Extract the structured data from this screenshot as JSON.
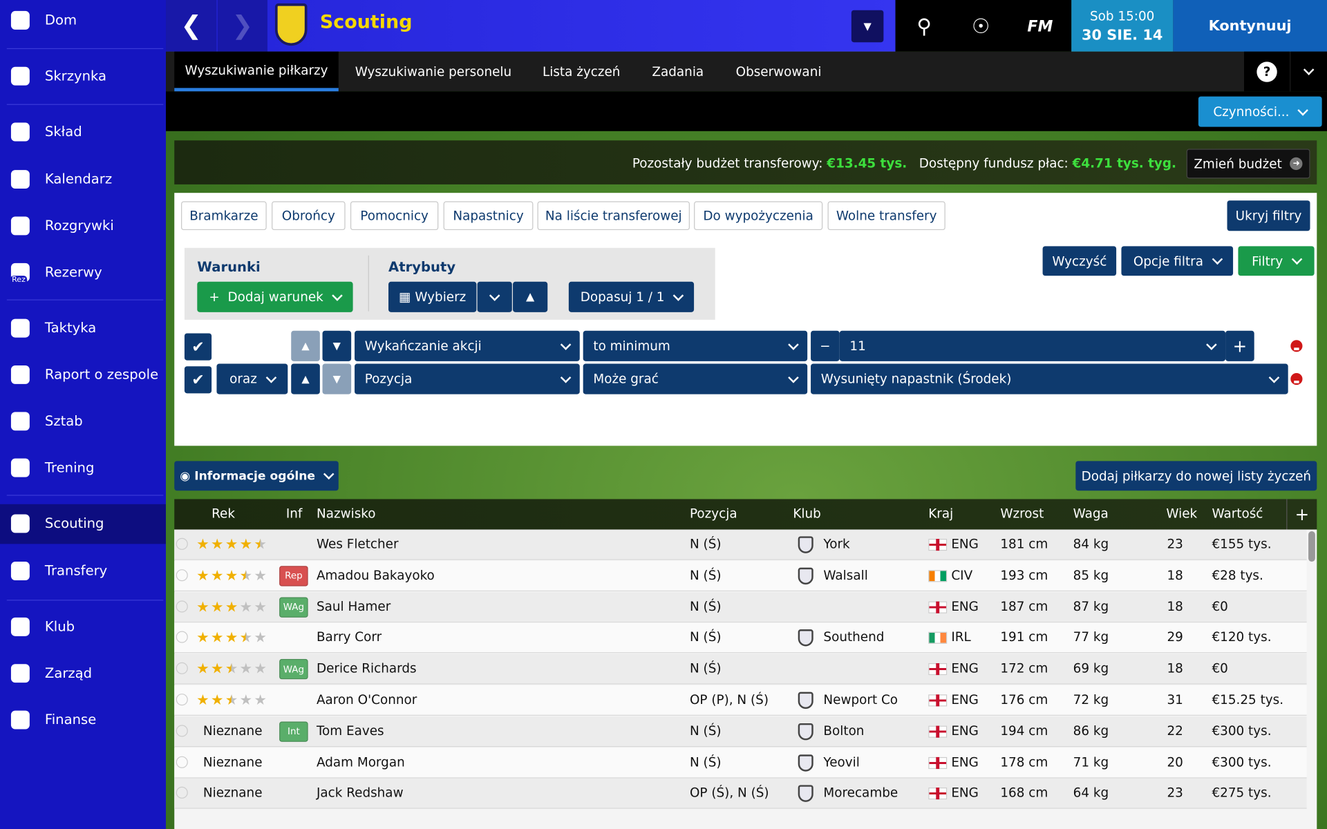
{
  "sidebar": {
    "items": [
      {
        "label": "Dom"
      },
      {
        "label": "Skrzynka"
      },
      {
        "label": "Skład"
      },
      {
        "label": "Kalendarz"
      },
      {
        "label": "Rozgrywki"
      },
      {
        "label": "Rezerwy",
        "icon_label": "Rez"
      },
      {
        "label": "Taktyka"
      },
      {
        "label": "Raport o zespole"
      },
      {
        "label": "Sztab"
      },
      {
        "label": "Trening"
      },
      {
        "label": "Scouting",
        "active": true
      },
      {
        "label": "Transfery"
      },
      {
        "label": "Klub"
      },
      {
        "label": "Zarząd"
      },
      {
        "label": "Finanse"
      }
    ]
  },
  "header": {
    "title": "Scouting",
    "logo": "FM",
    "time": "Sob 15:00",
    "date": "30 SIE. 14",
    "continue": "Kontynuuj"
  },
  "tabs": [
    {
      "label": "Wyszukiwanie piłkarzy",
      "active": true
    },
    {
      "label": "Wyszukiwanie personelu"
    },
    {
      "label": "Lista życzeń"
    },
    {
      "label": "Zadania"
    },
    {
      "label": "Obserwowani"
    }
  ],
  "help": "?",
  "actions": "Czynności...",
  "budget": {
    "transfer_label": "Pozostały budżet transferowy:",
    "transfer_value": "€13.45 tys.",
    "wage_label": "Dostępny fundusz płac:",
    "wage_value": "€4.71 tys. tyg.",
    "change": "Zmień budżet"
  },
  "quick_filters": [
    "Bramkarze",
    "Obrońcy",
    "Pomocnicy",
    "Napastnicy",
    "Na liście transferowej",
    "Do wypożyczenia",
    "Wolne transfery"
  ],
  "hide_filters": "Ukryj filtry",
  "conditions": {
    "title": "Warunki",
    "add": "Dodaj warunek"
  },
  "attributes": {
    "title": "Atrybuty",
    "choose": "Wybierz",
    "match": "Dopasuj 1 / 1"
  },
  "filter_buttons": {
    "clear": "Wyczyść",
    "options": "Opcje filtra",
    "filters": "Filtry"
  },
  "rules": [
    {
      "attribute": "Wykańczanie akcji",
      "operator": "to minimum",
      "value": "11"
    },
    {
      "joiner": "oraz",
      "attribute": "Pozycja",
      "operator": "Może grać",
      "value": "Wysunięty napastnik (Środek)"
    }
  ],
  "view": "Informacje ogólne",
  "add_shortlist": "Dodaj piłkarzy do nowej listy życzeń",
  "table": {
    "columns": [
      "Rek",
      "Inf",
      "Nazwisko",
      "Pozycja",
      "Klub",
      "Kraj",
      "Wzrost",
      "Waga",
      "Wiek",
      "Wartość"
    ],
    "add_column": "+",
    "rows": [
      {
        "rating": 4.5,
        "name": "Wes Fletcher",
        "position": "N (Ś)",
        "club": "York",
        "country": "ENG",
        "height": "181 cm",
        "weight": "84 kg",
        "age": "23",
        "value": "€155 tys."
      },
      {
        "rating": 3.5,
        "info": "Rep",
        "name": "Amadou Bakayoko",
        "position": "N (Ś)",
        "club": "Walsall",
        "country": "CIV",
        "height": "193 cm",
        "weight": "85 kg",
        "age": "18",
        "value": "€28 tys."
      },
      {
        "rating": 3,
        "info": "WAg",
        "name": "Saul Hamer",
        "position": "N (Ś)",
        "country": "ENG",
        "height": "187 cm",
        "weight": "87 kg",
        "age": "18",
        "value": "€0"
      },
      {
        "rating": 3.5,
        "name": "Barry Corr",
        "position": "N (Ś)",
        "club": "Southend",
        "country": "IRL",
        "height": "191 cm",
        "weight": "77 kg",
        "age": "29",
        "value": "€120 tys."
      },
      {
        "rating": 2.5,
        "info": "WAg",
        "name": "Derice Richards",
        "position": "N (Ś)",
        "country": "ENG",
        "height": "172 cm",
        "weight": "69 kg",
        "age": "18",
        "value": "€0"
      },
      {
        "rating": 2.5,
        "name": "Aaron O'Connor",
        "position": "OP (P), N (Ś)",
        "club": "Newport Co",
        "country": "ENG",
        "height": "176 cm",
        "weight": "72 kg",
        "age": "31",
        "value": "€15.25 tys."
      },
      {
        "rating_text": "Nieznane",
        "info": "Int",
        "name": "Tom Eaves",
        "position": "N (Ś)",
        "club": "Bolton",
        "country": "ENG",
        "height": "194 cm",
        "weight": "86 kg",
        "age": "22",
        "value": "€300 tys."
      },
      {
        "rating_text": "Nieznane",
        "name": "Adam Morgan",
        "position": "N (Ś)",
        "club": "Yeovil",
        "country": "ENG",
        "height": "178 cm",
        "weight": "71 kg",
        "age": "20",
        "value": "€300 tys."
      },
      {
        "rating_text": "Nieznane",
        "name": "Jack Redshaw",
        "position": "OP (Ś), N (Ś)",
        "club": "Morecambe",
        "country": "ENG",
        "height": "168 cm",
        "weight": "64 kg",
        "age": "23",
        "value": "€275 tys."
      }
    ]
  }
}
